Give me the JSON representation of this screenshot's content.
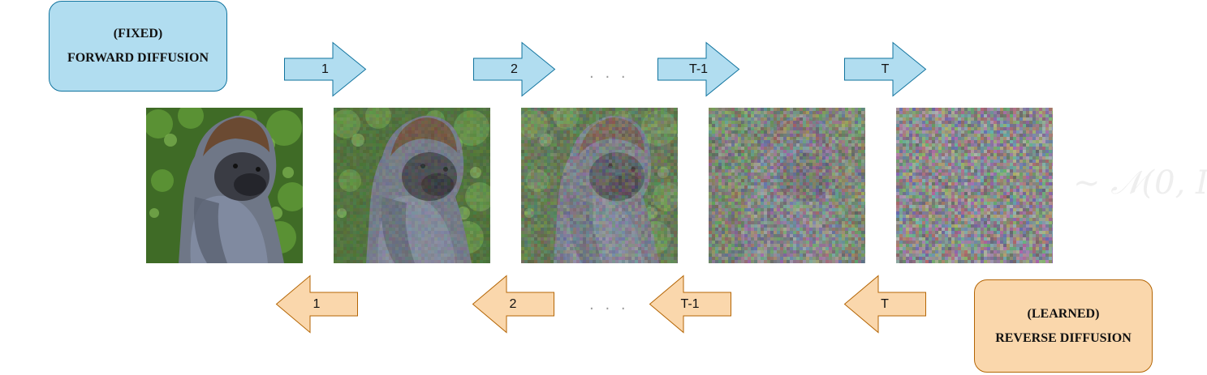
{
  "forward_box": {
    "line1": "(FIXED)",
    "line2": "FORWARD DIFFUSION"
  },
  "reverse_box": {
    "line1": "(LEARNED)",
    "line2": "REVERSE DIFFUSION"
  },
  "forward_arrows": [
    "1",
    "2",
    "T-1",
    "T"
  ],
  "reverse_arrows": [
    "1",
    "2",
    "T-1",
    "T"
  ],
  "ellipsis": ". . .",
  "distribution_label": "∼ 𝒩(0, I)",
  "images": [
    {
      "name": "gorilla-clean",
      "noise": 0
    },
    {
      "name": "gorilla-noise-step-1",
      "noise": 0.25
    },
    {
      "name": "gorilla-noise-step-2",
      "noise": 0.5
    },
    {
      "name": "gorilla-noise-step-t-minus-1",
      "noise": 0.8
    },
    {
      "name": "gorilla-pure-noise",
      "noise": 1
    }
  ],
  "colors": {
    "forward_fill": "#b1ddf0",
    "forward_stroke": "#10739e",
    "reverse_fill": "#fad7ac",
    "reverse_stroke": "#b46504"
  }
}
